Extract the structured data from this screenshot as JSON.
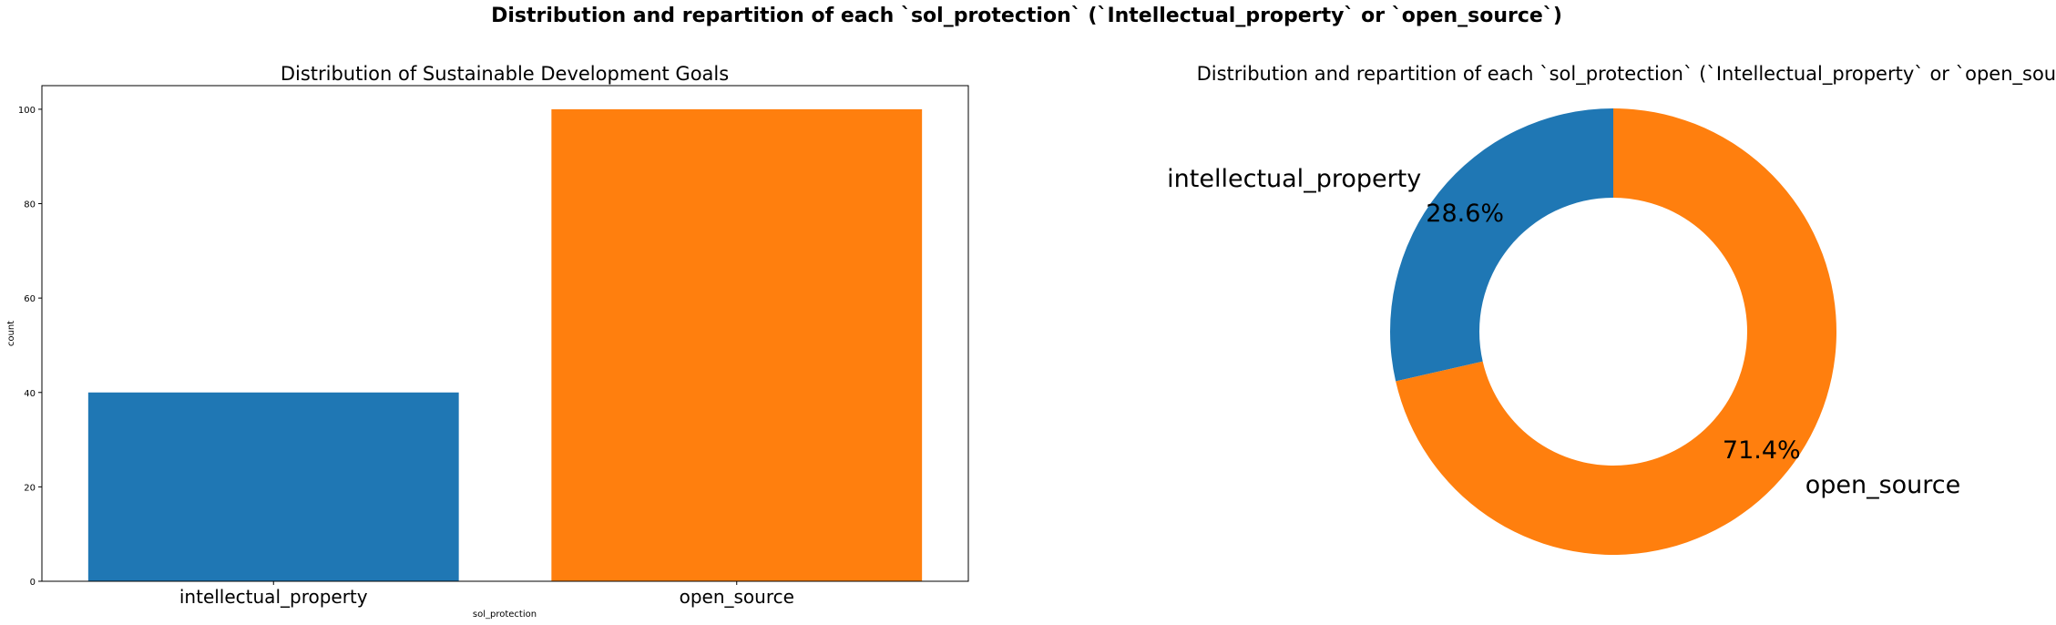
{
  "figure": {
    "suptitle": "Distribution and repartition  of each `sol_protection` (`Intellectual_property` or `open_source`)"
  },
  "colors": {
    "intellectual_property": "#1f77b4",
    "open_source": "#ff7f0e"
  },
  "chart_data": [
    {
      "type": "bar",
      "title": "Distribution of Sustainable Development Goals",
      "xlabel": "sol_protection",
      "ylabel": "count",
      "categories": [
        "intellectual_property",
        "open_source"
      ],
      "values": [
        40,
        100
      ],
      "ylim": [
        0,
        105
      ],
      "yticks": [
        0,
        20,
        40,
        60,
        80,
        100
      ],
      "grid": false
    },
    {
      "type": "pie",
      "title": "Distribution and repartition  of each `sol_protection` (`Intellectual_property` or `open_source`)",
      "labels": [
        "intellectual_property",
        "open_source"
      ],
      "values": [
        40,
        100
      ],
      "percent_labels": [
        "28.6%",
        "71.4%"
      ],
      "donut": true
    }
  ]
}
